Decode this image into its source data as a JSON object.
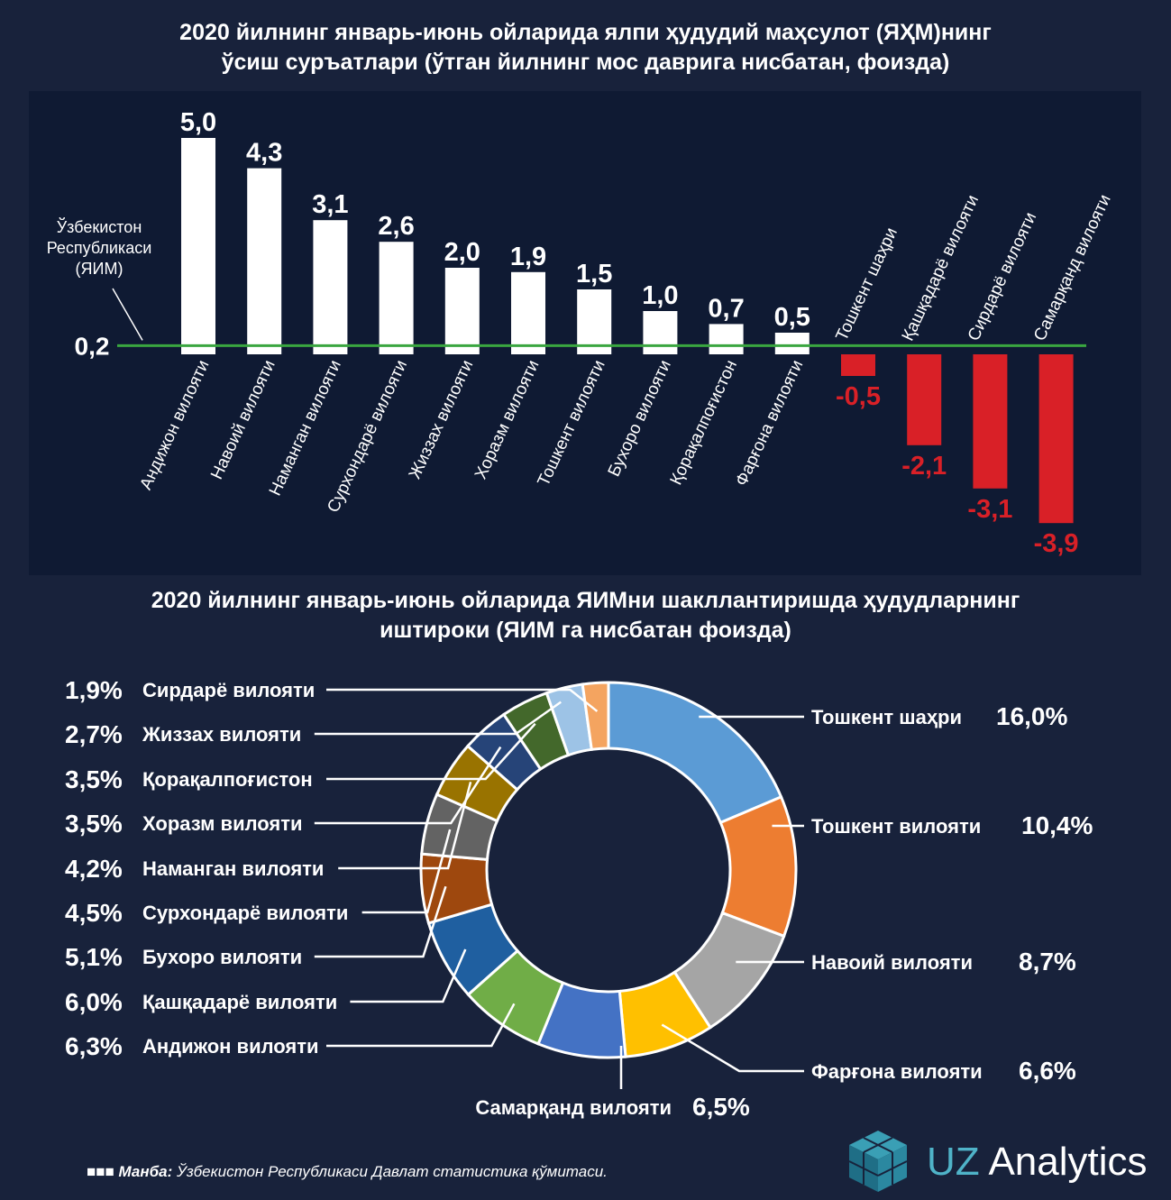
{
  "title1": {
    "line1": "2020 йилнинг январь-июнь ойларида ялпи ҳудудий маҳсулот (ЯҲМ)нинг",
    "line2": "ўсиш суръатлари (ўтган йилнинг мос даврига нисбатан, фоизда)"
  },
  "title2": {
    "line1": "2020 йилнинг январь-июнь ойларида ЯИМни шакллантиришда ҳудудларнинг",
    "line2": "иштироки (ЯИМ га нисбатан фоизда)"
  },
  "source": {
    "label": "Манба:",
    "text": "Ўзбекистон Республикаси Давлат статистика қўмитаси."
  },
  "logo": {
    "part1": "UZ",
    "part2": "Analytics"
  },
  "chart_data": [
    {
      "type": "bar",
      "reference": {
        "label_lines": [
          "Ўзбекистон",
          "Республикаси",
          "(ЯИМ)"
        ],
        "value": 0.2,
        "value_label": "0,2",
        "color": "#3aa640"
      },
      "categories": [
        "Андижон вилояти",
        "Навоий вилояти",
        "Наманган вилояти",
        "Сурхондарё вилояти",
        "Жиззах вилояти",
        "Хоразм вилояти",
        "Тошкент вилояти",
        "Бухоро вилояти",
        "Қорақалпоғистон",
        "Фарғона вилояти",
        "Тошкент шаҳри",
        "Қашқадарё вилояти",
        "Сирдарё вилояти",
        "Самарқанд вилояти"
      ],
      "values": [
        5.0,
        4.3,
        3.1,
        2.6,
        2.0,
        1.9,
        1.5,
        1.0,
        0.7,
        0.5,
        -0.5,
        -2.1,
        -3.1,
        -3.9
      ],
      "value_labels": [
        "5,0",
        "4,3",
        "3,1",
        "2,6",
        "2,0",
        "1,9",
        "1,5",
        "1,0",
        "0,7",
        "0,5",
        "-0,5",
        "-2,1",
        "-3,1",
        "-3,9"
      ],
      "colors": {
        "positive": "#ffffff",
        "negative": "#d92027"
      }
    },
    {
      "type": "pie",
      "donut": true,
      "slices": [
        {
          "label": "Тошкент шаҳри",
          "value": 16.0,
          "value_label": "16,0%",
          "color": "#5b9bd5"
        },
        {
          "label": "Тошкент вилояти",
          "value": 10.4,
          "value_label": "10,4%",
          "color": "#ed7d31"
        },
        {
          "label": "Навоий вилояти",
          "value": 8.7,
          "value_label": "8,7%",
          "color": "#a5a5a5"
        },
        {
          "label": "Фарғона вилояти",
          "value": 6.6,
          "value_label": "6,6%",
          "color": "#ffc000"
        },
        {
          "label": "Самарқанд вилояти",
          "value": 6.5,
          "value_label": "6,5%",
          "color": "#4472c4"
        },
        {
          "label": "Андижон вилояти",
          "value": 6.3,
          "value_label": "6,3%",
          "color": "#70ad47"
        },
        {
          "label": "Қашқадарё вилояти",
          "value": 6.0,
          "value_label": "6,0%",
          "color": "#1f5fa0"
        },
        {
          "label": "Бухоро вилояти",
          "value": 5.1,
          "value_label": "5,1%",
          "color": "#9e480e"
        },
        {
          "label": "Сурхондарё вилояти",
          "value": 4.5,
          "value_label": "4,5%",
          "color": "#636363"
        },
        {
          "label": "Наманган вилояти",
          "value": 4.2,
          "value_label": "4,2%",
          "color": "#997300"
        },
        {
          "label": "Хоразм вилояти",
          "value": 3.5,
          "value_label": "3,5%",
          "color": "#264478"
        },
        {
          "label": "Қорақалпоғистон",
          "value": 3.5,
          "value_label": "3,5%",
          "color": "#43682b"
        },
        {
          "label": "Жиззах вилояти",
          "value": 2.7,
          "value_label": "2,7%",
          "color": "#9dc3e6"
        },
        {
          "label": "Сирдарё вилояти",
          "value": 1.9,
          "value_label": "1,9%",
          "color": "#f4a460"
        }
      ]
    }
  ]
}
